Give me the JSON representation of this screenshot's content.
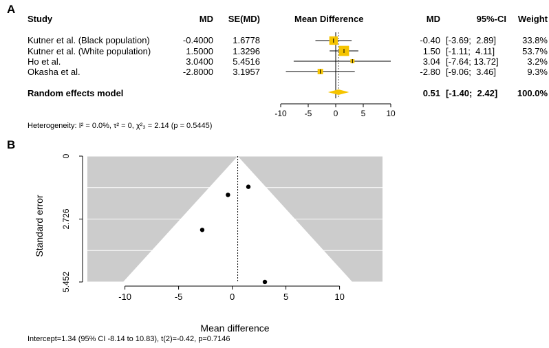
{
  "panel_a": {
    "label": "A",
    "headers": {
      "study": "Study",
      "md": "MD",
      "se": "SE(MD)",
      "plot": "Mean Difference",
      "md2": "MD",
      "ci": "95%-CI",
      "weight": "Weight"
    },
    "model_label": "Random effects model",
    "heterogeneity": "Heterogeneity: I² = 0.0%, τ² = 0, χ²₃ = 2.14 (p = 0.5445)",
    "chart_data": {
      "type": "forest",
      "xlim": [
        -10,
        10
      ],
      "xticks": [
        -10,
        -5,
        0,
        5,
        10
      ],
      "colors": {
        "box": "#f5c400",
        "diamond": "#f5c400"
      },
      "studies": [
        {
          "study": "Kutner et al. (Black population)",
          "md_text": "-0.4000",
          "se_text": "1.6778",
          "md": -0.4,
          "lower": -3.69,
          "upper": 2.89,
          "md2_text": "-0.40",
          "ci_text": "[-3.69;  2.89]",
          "weight_text": "33.8%",
          "weight": 33.8
        },
        {
          "study": "Kutner et al. (White population)",
          "md_text": "1.5000",
          "se_text": "1.3296",
          "md": 1.5,
          "lower": -1.11,
          "upper": 4.11,
          "md2_text": "1.50",
          "ci_text": "[-1.11;  4.11]",
          "weight_text": "53.7%",
          "weight": 53.7
        },
        {
          "study": "Ho et al.",
          "md_text": "3.0400",
          "se_text": "5.4516",
          "md": 3.04,
          "lower": -7.64,
          "upper": 13.72,
          "md2_text": "3.04",
          "ci_text": "[-7.64; 13.72]",
          "weight_text": "3.2%",
          "weight": 3.2
        },
        {
          "study": "Okasha et al.",
          "md_text": "-2.8000",
          "se_text": "3.1957",
          "md": -2.8,
          "lower": -9.06,
          "upper": 3.46,
          "md2_text": "-2.80",
          "ci_text": "[-9.06;  3.46]",
          "weight_text": "9.3%",
          "weight": 9.3
        }
      ],
      "pooled": {
        "md": 0.51,
        "lower": -1.4,
        "upper": 2.42,
        "md_text": "0.51",
        "ci_text": "[-1.40;  2.42]",
        "weight_text": "100.0%"
      }
    }
  },
  "panel_b": {
    "label": "B",
    "intercept_text": "Intercept=1.34 (95% CI -8.14 to 10.83), t(2)=-0.42, p=0.7146",
    "chart_data": {
      "type": "scatter",
      "xlabel": "Mean difference",
      "ylabel": "Standard error",
      "xlim": [
        -13.5,
        14
      ],
      "ylim": [
        0,
        5.452
      ],
      "y_reversed": true,
      "xticks": [
        -10,
        -5,
        0,
        5,
        10
      ],
      "yticks": [
        0,
        2.726,
        5.452
      ],
      "ytick_labels": [
        "0",
        "2.726",
        "5.452"
      ],
      "pooled_md": 0.51,
      "colors": {
        "funnel_outside": "#cccccc",
        "funnel_inside": "#ffffff",
        "points": "#000000"
      },
      "points": [
        {
          "x": -0.4,
          "y": 1.6778
        },
        {
          "x": 1.5,
          "y": 1.3296
        },
        {
          "x": 3.04,
          "y": 5.4516
        },
        {
          "x": -2.8,
          "y": 3.1957
        }
      ]
    }
  }
}
